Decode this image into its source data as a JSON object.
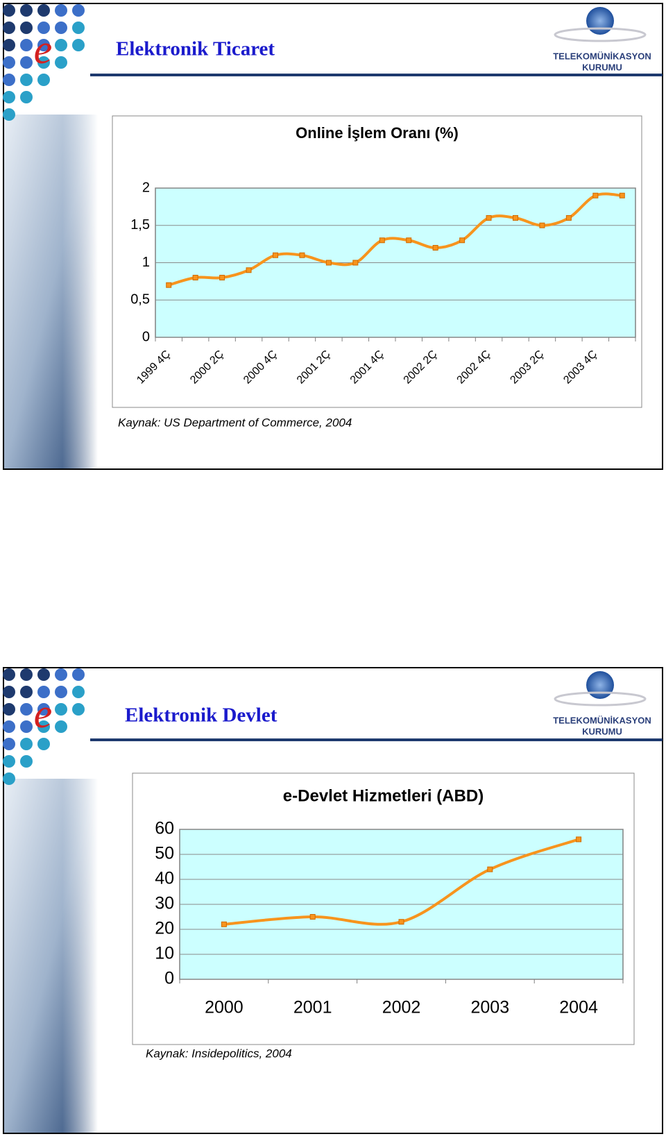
{
  "slides": [
    {
      "title": "Elektronik Ticaret",
      "logo": [
        "TELEKOMÜNİKASYON",
        "KURUMU"
      ],
      "source": "Kaynak: US Department of Commerce, 2004"
    },
    {
      "title": "Elektronik Devlet",
      "logo": [
        "TELEKOMÜNİKASYON",
        "KURUMU"
      ],
      "source": "Kaynak: Insidepolitics, 2004"
    }
  ],
  "chart_data": [
    {
      "type": "line",
      "title": "Online İşlem Oranı (%)",
      "categories": [
        "1999 4Ç",
        null,
        "2000 2Ç",
        null,
        "2000 4Ç",
        null,
        "2001 2Ç",
        null,
        "2001 4Ç",
        null,
        "2002 2Ç",
        null,
        "2002 4Ç",
        null,
        "2003 2Ç",
        null,
        "2003 4Ç",
        null
      ],
      "series": [
        {
          "name": "Online İşlem Oranı",
          "color": "#f7941d",
          "values": [
            0.7,
            0.8,
            0.8,
            0.9,
            1.1,
            1.1,
            1.0,
            1.0,
            1.3,
            1.3,
            1.2,
            1.3,
            1.6,
            1.6,
            1.5,
            1.6,
            1.9,
            1.9
          ]
        }
      ],
      "ylim": [
        0,
        2
      ],
      "yticks": [
        0,
        {
          "value": 0.5,
          "label": "0,5"
        },
        1,
        {
          "value": 1.5,
          "label": "1,5"
        },
        2
      ],
      "grid": true,
      "rotate_labels": true
    },
    {
      "type": "line",
      "title": "e-Devlet Hizmetleri (ABD)",
      "categories": [
        "2000",
        "2001",
        "2002",
        "2003",
        "2004"
      ],
      "series": [
        {
          "name": "e-Devlet Hizmetleri",
          "color": "#f7941d",
          "values": [
            22,
            25,
            23,
            44,
            56
          ]
        }
      ],
      "ylim": [
        0,
        60
      ],
      "yticks": [
        0,
        10,
        20,
        30,
        40,
        50,
        60
      ],
      "grid": true,
      "rotate_labels": false
    }
  ]
}
